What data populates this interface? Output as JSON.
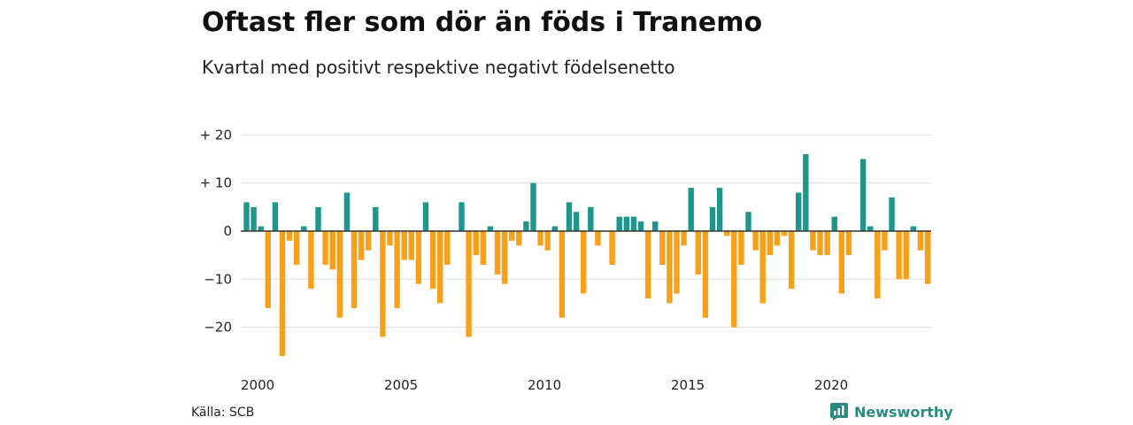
{
  "header": {
    "title": "Oftast fler som dör än föds i Tranemo",
    "subtitle": "Kvartal med positivt respektive negativt födelsenetto"
  },
  "footer": {
    "source": "Källa: SCB",
    "brand": "Newsworthy"
  },
  "colors": {
    "positive": "#1f968b",
    "negative": "#f7a11a",
    "grid": "#dddddd",
    "zero_line": "#333333",
    "brand": "#2a8c80"
  },
  "chart_data": {
    "type": "bar",
    "title": "Oftast fler som dör än föds i Tranemo",
    "subtitle": "Kvartal med positivt respektive negativt födelsenetto",
    "xlabel": "",
    "ylabel": "",
    "ylim": [
      -26,
      20
    ],
    "yticks": [
      {
        "value": 20,
        "label": "+ 20"
      },
      {
        "value": 10,
        "label": "+ 10"
      },
      {
        "value": 0,
        "label": "0"
      },
      {
        "value": -10,
        "label": "−10"
      },
      {
        "value": -20,
        "label": "−20"
      }
    ],
    "xticks": [
      {
        "label": "2000",
        "year": 2000
      },
      {
        "label": "2005",
        "year": 2005
      },
      {
        "label": "2010",
        "year": 2010
      },
      {
        "label": "2015",
        "year": 2015
      },
      {
        "label": "2020",
        "year": 2020
      }
    ],
    "grid": true,
    "start_year": 2000,
    "quarters_per_year": 4,
    "values": [
      6,
      5,
      1,
      -16,
      6,
      -26,
      -2,
      -7,
      1,
      -12,
      5,
      -7,
      -8,
      -18,
      8,
      -16,
      -6,
      -4,
      5,
      -22,
      -3,
      -16,
      -6,
      -6,
      -11,
      6,
      -12,
      -15,
      -7,
      0,
      6,
      -22,
      -5,
      -7,
      1,
      -9,
      -11,
      -2,
      -3,
      2,
      10,
      -3,
      -4,
      1,
      -18,
      6,
      4,
      -13,
      5,
      -3,
      0,
      -7,
      3,
      3,
      3,
      2,
      -14,
      2,
      -7,
      -15,
      -13,
      -3,
      9,
      -9,
      -18,
      5,
      9,
      -1,
      -20,
      -7,
      4,
      -4,
      -15,
      -5,
      -3,
      -1,
      -12,
      8,
      16,
      -4,
      -5,
      -5,
      3,
      -13,
      -5,
      0,
      15,
      1,
      -14,
      -4,
      7,
      -10,
      -10,
      1,
      -4,
      -11
    ]
  }
}
